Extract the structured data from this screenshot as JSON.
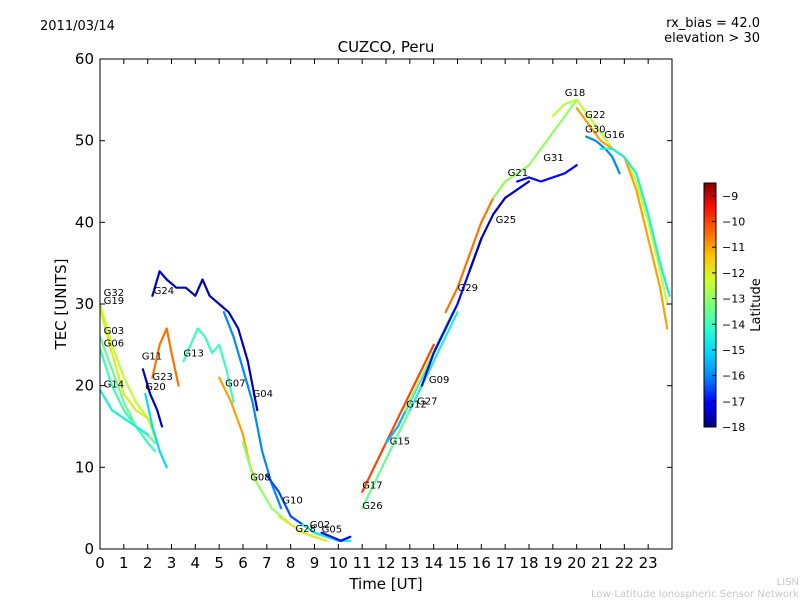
{
  "header": {
    "date": "2011/03/14",
    "rx_bias": "rx_bias = 42.0",
    "elevation": "elevation > 30"
  },
  "watermark": {
    "line1": "LISN",
    "line2": "Low-Latitude Ionospheric Sensor Network"
  },
  "colorbar": {
    "label": "Latitude",
    "min": -18,
    "max": -8.5,
    "ticks": [
      "−9",
      "−10",
      "−11",
      "−12",
      "−13",
      "−14",
      "−15",
      "−16",
      "−17",
      "−18"
    ],
    "tick_values": [
      -9,
      -10,
      -11,
      -12,
      -13,
      -14,
      -15,
      -16,
      -17,
      -18
    ],
    "colors": [
      "#00007f",
      "#0000ff",
      "#0080ff",
      "#00d4ff",
      "#29ffce",
      "#7dff7a",
      "#ceff29",
      "#ffc400",
      "#ff6800",
      "#ff1000",
      "#7f0000"
    ]
  },
  "chart_data": {
    "type": "line",
    "title": "CUZCO, Peru",
    "xlabel": "Time [UT]",
    "ylabel": "TEC [UNITS]",
    "xlim": [
      0,
      24
    ],
    "ylim": [
      0,
      60
    ],
    "xticks": [
      "0",
      "1",
      "2",
      "3",
      "4",
      "5",
      "6",
      "7",
      "8",
      "9",
      "10",
      "11",
      "12",
      "13",
      "14",
      "15",
      "16",
      "17",
      "18",
      "19",
      "20",
      "21",
      "22",
      "23"
    ],
    "xtick_values": [
      0,
      1,
      2,
      3,
      4,
      5,
      6,
      7,
      8,
      9,
      10,
      11,
      12,
      13,
      14,
      15,
      16,
      17,
      18,
      19,
      20,
      21,
      22,
      23
    ],
    "yticks": [
      "0",
      "10",
      "20",
      "30",
      "40",
      "50",
      "60"
    ],
    "ytick_values": [
      0,
      10,
      20,
      30,
      40,
      50,
      60
    ],
    "series": [
      {
        "name": "G32",
        "lat": -12.5,
        "x": [
          0.0,
          0.5,
          1.0,
          1.5,
          2.0,
          2.4
        ],
        "y": [
          30,
          25,
          21,
          18,
          16,
          13
        ]
      },
      {
        "name": "G19",
        "lat": -12.0,
        "x": [
          0.0,
          0.5,
          1.0,
          1.5,
          2.0
        ],
        "y": [
          29.5,
          24,
          19,
          17,
          16
        ]
      },
      {
        "name": "G03",
        "lat": -13.5,
        "x": [
          0.0,
          0.5,
          1.0,
          1.5,
          2.0,
          2.3
        ],
        "y": [
          26,
          22,
          18,
          15,
          14,
          13
        ]
      },
      {
        "name": "G06",
        "lat": -14.0,
        "x": [
          0.0,
          0.5,
          1.0,
          1.5,
          2.0,
          2.3
        ],
        "y": [
          24.5,
          20,
          17,
          15,
          13,
          12
        ]
      },
      {
        "name": "G14",
        "lat": -14.5,
        "x": [
          0.0,
          0.5,
          1.0,
          1.5,
          2.0
        ],
        "y": [
          19.5,
          17,
          16,
          15,
          14
        ]
      },
      {
        "name": "G11",
        "lat": -17.5,
        "x": [
          1.8,
          2.1,
          2.4,
          2.6
        ],
        "y": [
          22,
          19,
          17,
          15
        ]
      },
      {
        "name": "G23",
        "lat": -10.5,
        "x": [
          2.2,
          2.5,
          2.8,
          3.0,
          3.3
        ],
        "y": [
          21,
          25,
          27,
          24,
          20
        ]
      },
      {
        "name": "G20",
        "lat": -15.0,
        "x": [
          1.9,
          2.2,
          2.5,
          2.8
        ],
        "y": [
          19,
          15,
          12,
          10
        ]
      },
      {
        "name": "G24",
        "lat": -17.5,
        "x": [
          2.2,
          2.5,
          2.8,
          3.2,
          3.6,
          4.0,
          4.3,
          4.6,
          5.0,
          5.4,
          5.8,
          6.2,
          6.6
        ],
        "y": [
          31,
          34,
          33,
          32,
          32,
          31,
          33,
          31,
          30,
          29,
          27,
          23,
          17
        ]
      },
      {
        "name": "G13",
        "lat": -14.0,
        "x": [
          3.5,
          3.8,
          4.1,
          4.4,
          4.7,
          5.0,
          5.3,
          5.6
        ],
        "y": [
          23,
          25,
          27,
          26,
          24,
          25,
          22,
          18
        ]
      },
      {
        "name": "G07",
        "lat": -11.0,
        "x": [
          5.0,
          5.5,
          6.0,
          6.3,
          6.6
        ],
        "y": [
          21,
          18,
          14,
          10,
          8
        ]
      },
      {
        "name": "G04",
        "lat": -16.0,
        "x": [
          5.2,
          5.6,
          6.0,
          6.4,
          6.8,
          7.2,
          7.6
        ],
        "y": [
          29,
          26,
          22,
          18,
          12,
          8,
          5
        ]
      },
      {
        "name": "G08",
        "lat": -13.0,
        "x": [
          6.0,
          6.4,
          6.8,
          7.2,
          7.6,
          8.0
        ],
        "y": [
          13,
          9,
          7,
          5,
          4,
          3
        ]
      },
      {
        "name": "G10",
        "lat": -16.5,
        "x": [
          7.0,
          7.5,
          8.0,
          8.5,
          9.0,
          9.5
        ],
        "y": [
          9,
          7,
          4,
          3,
          2,
          1.5
        ]
      },
      {
        "name": "G28",
        "lat": -12.0,
        "x": [
          7.5,
          8.0,
          8.5,
          9.0,
          9.5
        ],
        "y": [
          4,
          3,
          2,
          1.5,
          1
        ]
      },
      {
        "name": "G02",
        "lat": -14.5,
        "x": [
          8.5,
          9.0,
          9.5,
          10.0,
          10.5
        ],
        "y": [
          3,
          2,
          1.5,
          1,
          1
        ]
      },
      {
        "name": "G05",
        "lat": -17.0,
        "x": [
          9.3,
          9.7,
          10.1,
          10.5
        ],
        "y": [
          2,
          1.5,
          1,
          1.5
        ]
      },
      {
        "name": "G17",
        "lat": -10.0,
        "x": [
          11.0,
          11.5,
          12.0,
          12.5,
          13.0,
          13.5,
          14.0
        ],
        "y": [
          7,
          10,
          13,
          16,
          19,
          22,
          25
        ]
      },
      {
        "name": "G26",
        "lat": -13.5,
        "x": [
          11.0,
          11.5,
          12.0,
          12.5,
          13.0,
          13.5,
          14.0
        ],
        "y": [
          5,
          8,
          11,
          14,
          17,
          20,
          23
        ]
      },
      {
        "name": "G15",
        "lat": -15.5,
        "x": [
          12.0,
          12.5,
          13.0,
          13.5,
          14.0,
          14.5
        ],
        "y": [
          13,
          15,
          18,
          21,
          24,
          27
        ]
      },
      {
        "name": "G12",
        "lat": -13.0,
        "x": [
          12.8,
          13.3,
          13.8,
          14.3,
          14.8
        ],
        "y": [
          17,
          20,
          23,
          26,
          29
        ]
      },
      {
        "name": "G27",
        "lat": -14.5,
        "x": [
          13.0,
          13.5,
          14.0,
          14.5,
          15.0
        ],
        "y": [
          17,
          20,
          23,
          26,
          29
        ]
      },
      {
        "name": "G09",
        "lat": -17.0,
        "x": [
          13.5,
          14.0,
          14.5,
          15.0,
          15.5,
          16.0
        ],
        "y": [
          20,
          24,
          27,
          30,
          34,
          38
        ]
      },
      {
        "name": "G29",
        "lat": -10.5,
        "x": [
          14.5,
          15.0,
          15.5,
          16.0,
          16.5,
          17.0
        ],
        "y": [
          29,
          32,
          36,
          40,
          43,
          45
        ]
      },
      {
        "name": "G25",
        "lat": -17.5,
        "x": [
          15.5,
          16.0,
          16.5,
          17.0,
          17.5,
          18.0
        ],
        "y": [
          34,
          38,
          41,
          43,
          44,
          45
        ]
      },
      {
        "name": "G21",
        "lat": -13.0,
        "x": [
          16.5,
          17.0,
          17.5,
          18.0,
          18.5,
          19.0,
          19.5,
          20.0
        ],
        "y": [
          43,
          45,
          46,
          47,
          49,
          51,
          53,
          55
        ]
      },
      {
        "name": "G31",
        "lat": -17.0,
        "x": [
          17.5,
          18.0,
          18.5,
          19.0,
          19.5,
          20.0
        ],
        "y": [
          45,
          45.5,
          45,
          45.5,
          46,
          47
        ]
      },
      {
        "name": "G18",
        "lat": -12.5,
        "x": [
          19.0,
          19.5,
          20.0,
          20.5,
          21.0,
          21.5,
          22.0,
          22.5,
          23.0,
          23.5,
          23.8
        ],
        "y": [
          53,
          54.5,
          55,
          53,
          51,
          49,
          48,
          45,
          40,
          34,
          30
        ]
      },
      {
        "name": "G22",
        "lat": -11.0,
        "x": [
          20.0,
          20.5,
          21.0,
          21.5,
          22.0,
          22.5,
          23.0,
          23.5,
          23.8
        ],
        "y": [
          54,
          52,
          50,
          49,
          48,
          44,
          38,
          32,
          27
        ]
      },
      {
        "name": "G30",
        "lat": -16.0,
        "x": [
          20.4,
          20.8,
          21.2,
          21.5,
          21.8
        ],
        "y": [
          50.5,
          50,
          49,
          48,
          46
        ]
      },
      {
        "name": "G16",
        "lat": -14.5,
        "x": [
          21.0,
          21.5,
          22.0,
          22.5,
          23.0,
          23.5,
          23.9
        ],
        "y": [
          49,
          49,
          48,
          46,
          41,
          35,
          31
        ]
      }
    ],
    "labels": [
      {
        "text": "G32",
        "x": 0.15,
        "y": 31.0
      },
      {
        "text": "G19",
        "x": 0.15,
        "y": 30.0
      },
      {
        "text": "G03",
        "x": 0.15,
        "y": 26.3
      },
      {
        "text": "G06",
        "x": 0.15,
        "y": 24.8
      },
      {
        "text": "G14",
        "x": 0.15,
        "y": 19.8
      },
      {
        "text": "G11",
        "x": 1.75,
        "y": 23.2
      },
      {
        "text": "G23",
        "x": 2.2,
        "y": 20.7
      },
      {
        "text": "G20",
        "x": 1.9,
        "y": 19.5
      },
      {
        "text": "G24",
        "x": 2.25,
        "y": 31.2
      },
      {
        "text": "G13",
        "x": 3.5,
        "y": 23.6
      },
      {
        "text": "G07",
        "x": 5.25,
        "y": 19.9
      },
      {
        "text": "G04",
        "x": 6.4,
        "y": 18.6
      },
      {
        "text": "G08",
        "x": 6.3,
        "y": 8.4
      },
      {
        "text": "G10",
        "x": 7.65,
        "y": 5.6
      },
      {
        "text": "G28",
        "x": 8.2,
        "y": 2.1
      },
      {
        "text": "G02",
        "x": 8.8,
        "y": 2.6
      },
      {
        "text": "G05",
        "x": 9.3,
        "y": 2.0
      },
      {
        "text": "G17",
        "x": 11.0,
        "y": 7.4
      },
      {
        "text": "G26",
        "x": 11.0,
        "y": 4.9
      },
      {
        "text": "G15",
        "x": 12.15,
        "y": 12.8
      },
      {
        "text": "G12",
        "x": 12.85,
        "y": 17.3
      },
      {
        "text": "G27",
        "x": 13.3,
        "y": 17.7
      },
      {
        "text": "G09",
        "x": 13.8,
        "y": 20.3
      },
      {
        "text": "G29",
        "x": 15.0,
        "y": 31.6
      },
      {
        "text": "G25",
        "x": 16.6,
        "y": 39.9
      },
      {
        "text": "G21",
        "x": 17.1,
        "y": 45.7
      },
      {
        "text": "G31",
        "x": 18.6,
        "y": 47.5
      },
      {
        "text": "G18",
        "x": 19.5,
        "y": 55.5
      },
      {
        "text": "G22",
        "x": 20.35,
        "y": 52.8
      },
      {
        "text": "G30",
        "x": 20.35,
        "y": 51.0
      },
      {
        "text": "G16",
        "x": 21.15,
        "y": 50.3
      }
    ]
  }
}
